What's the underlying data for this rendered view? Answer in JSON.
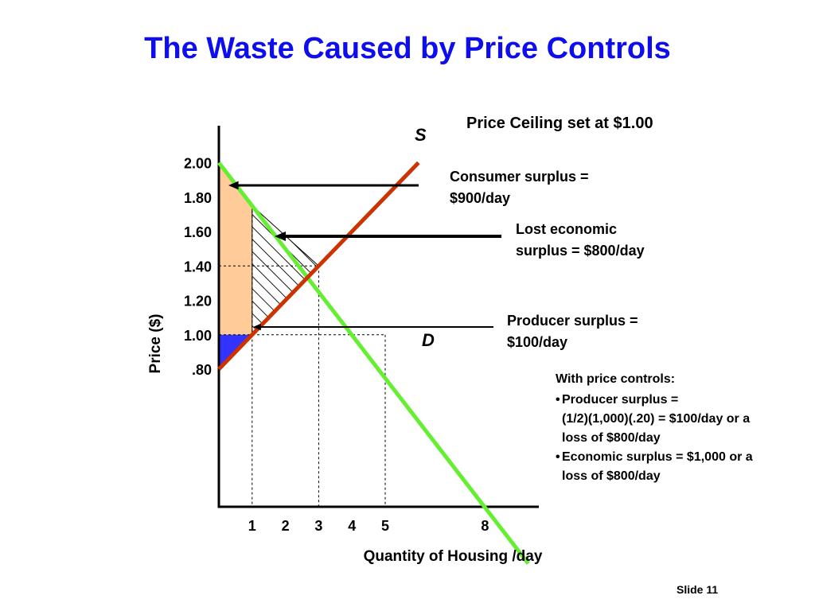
{
  "slide": {
    "title": "The Waste Caused by Price Controls",
    "number": "Slide 11"
  },
  "colors": {
    "title": "#0d0dee",
    "supply": "#cc3300",
    "demand": "#66ee33",
    "consumer_surplus": "#ffcc99",
    "producer_surplus": "#3333ff"
  },
  "labels": {
    "ceiling": "Price Ceiling set at $1.00",
    "consumer_surplus": "Consumer surplus =\n$900/day",
    "lost_surplus": "Lost economic\nsurplus  = $800/day",
    "producer_surplus": "Producer surplus =\n$100/day",
    "supply": "S",
    "demand": "D"
  },
  "notes": {
    "heading": "With price controls:",
    "bullets": [
      "Producer surplus =\n(1/2)(1,000)(.20) = $100/day or a\nloss of $800/day",
      "Economic surplus = $1,000 or a\nloss of $800/day"
    ]
  },
  "chart_data": {
    "type": "line",
    "xlabel": "Quantity of Housing /day",
    "ylabel": "Price ($)",
    "x_ticks": [
      1,
      2,
      3,
      4,
      5,
      8
    ],
    "y_ticks": [
      {
        "value": 2.0,
        "label": "2.00"
      },
      {
        "value": 1.8,
        "label": "1.80"
      },
      {
        "value": 1.6,
        "label": "1.60"
      },
      {
        "value": 1.4,
        "label": "1.40"
      },
      {
        "value": 1.2,
        "label": "1.20"
      },
      {
        "value": 1.0,
        "label": "1.00"
      },
      {
        "value": 0.8,
        "label": ".80"
      }
    ],
    "xlim": [
      0,
      9.5
    ],
    "ylim": [
      0,
      2.15
    ],
    "series": [
      {
        "name": "S",
        "points": [
          [
            0,
            0.8
          ],
          [
            6,
            2.0
          ]
        ]
      },
      {
        "name": "D",
        "points": [
          [
            0,
            2.0
          ],
          [
            9.3,
            -0.33
          ]
        ]
      }
    ],
    "price_ceiling": 1.0,
    "equilibrium": {
      "quantity": 3,
      "price": 1.4
    },
    "quantity_at_ceiling": 1,
    "quantity_demanded_at_ceiling": 5,
    "reference_price": 1.4
  }
}
